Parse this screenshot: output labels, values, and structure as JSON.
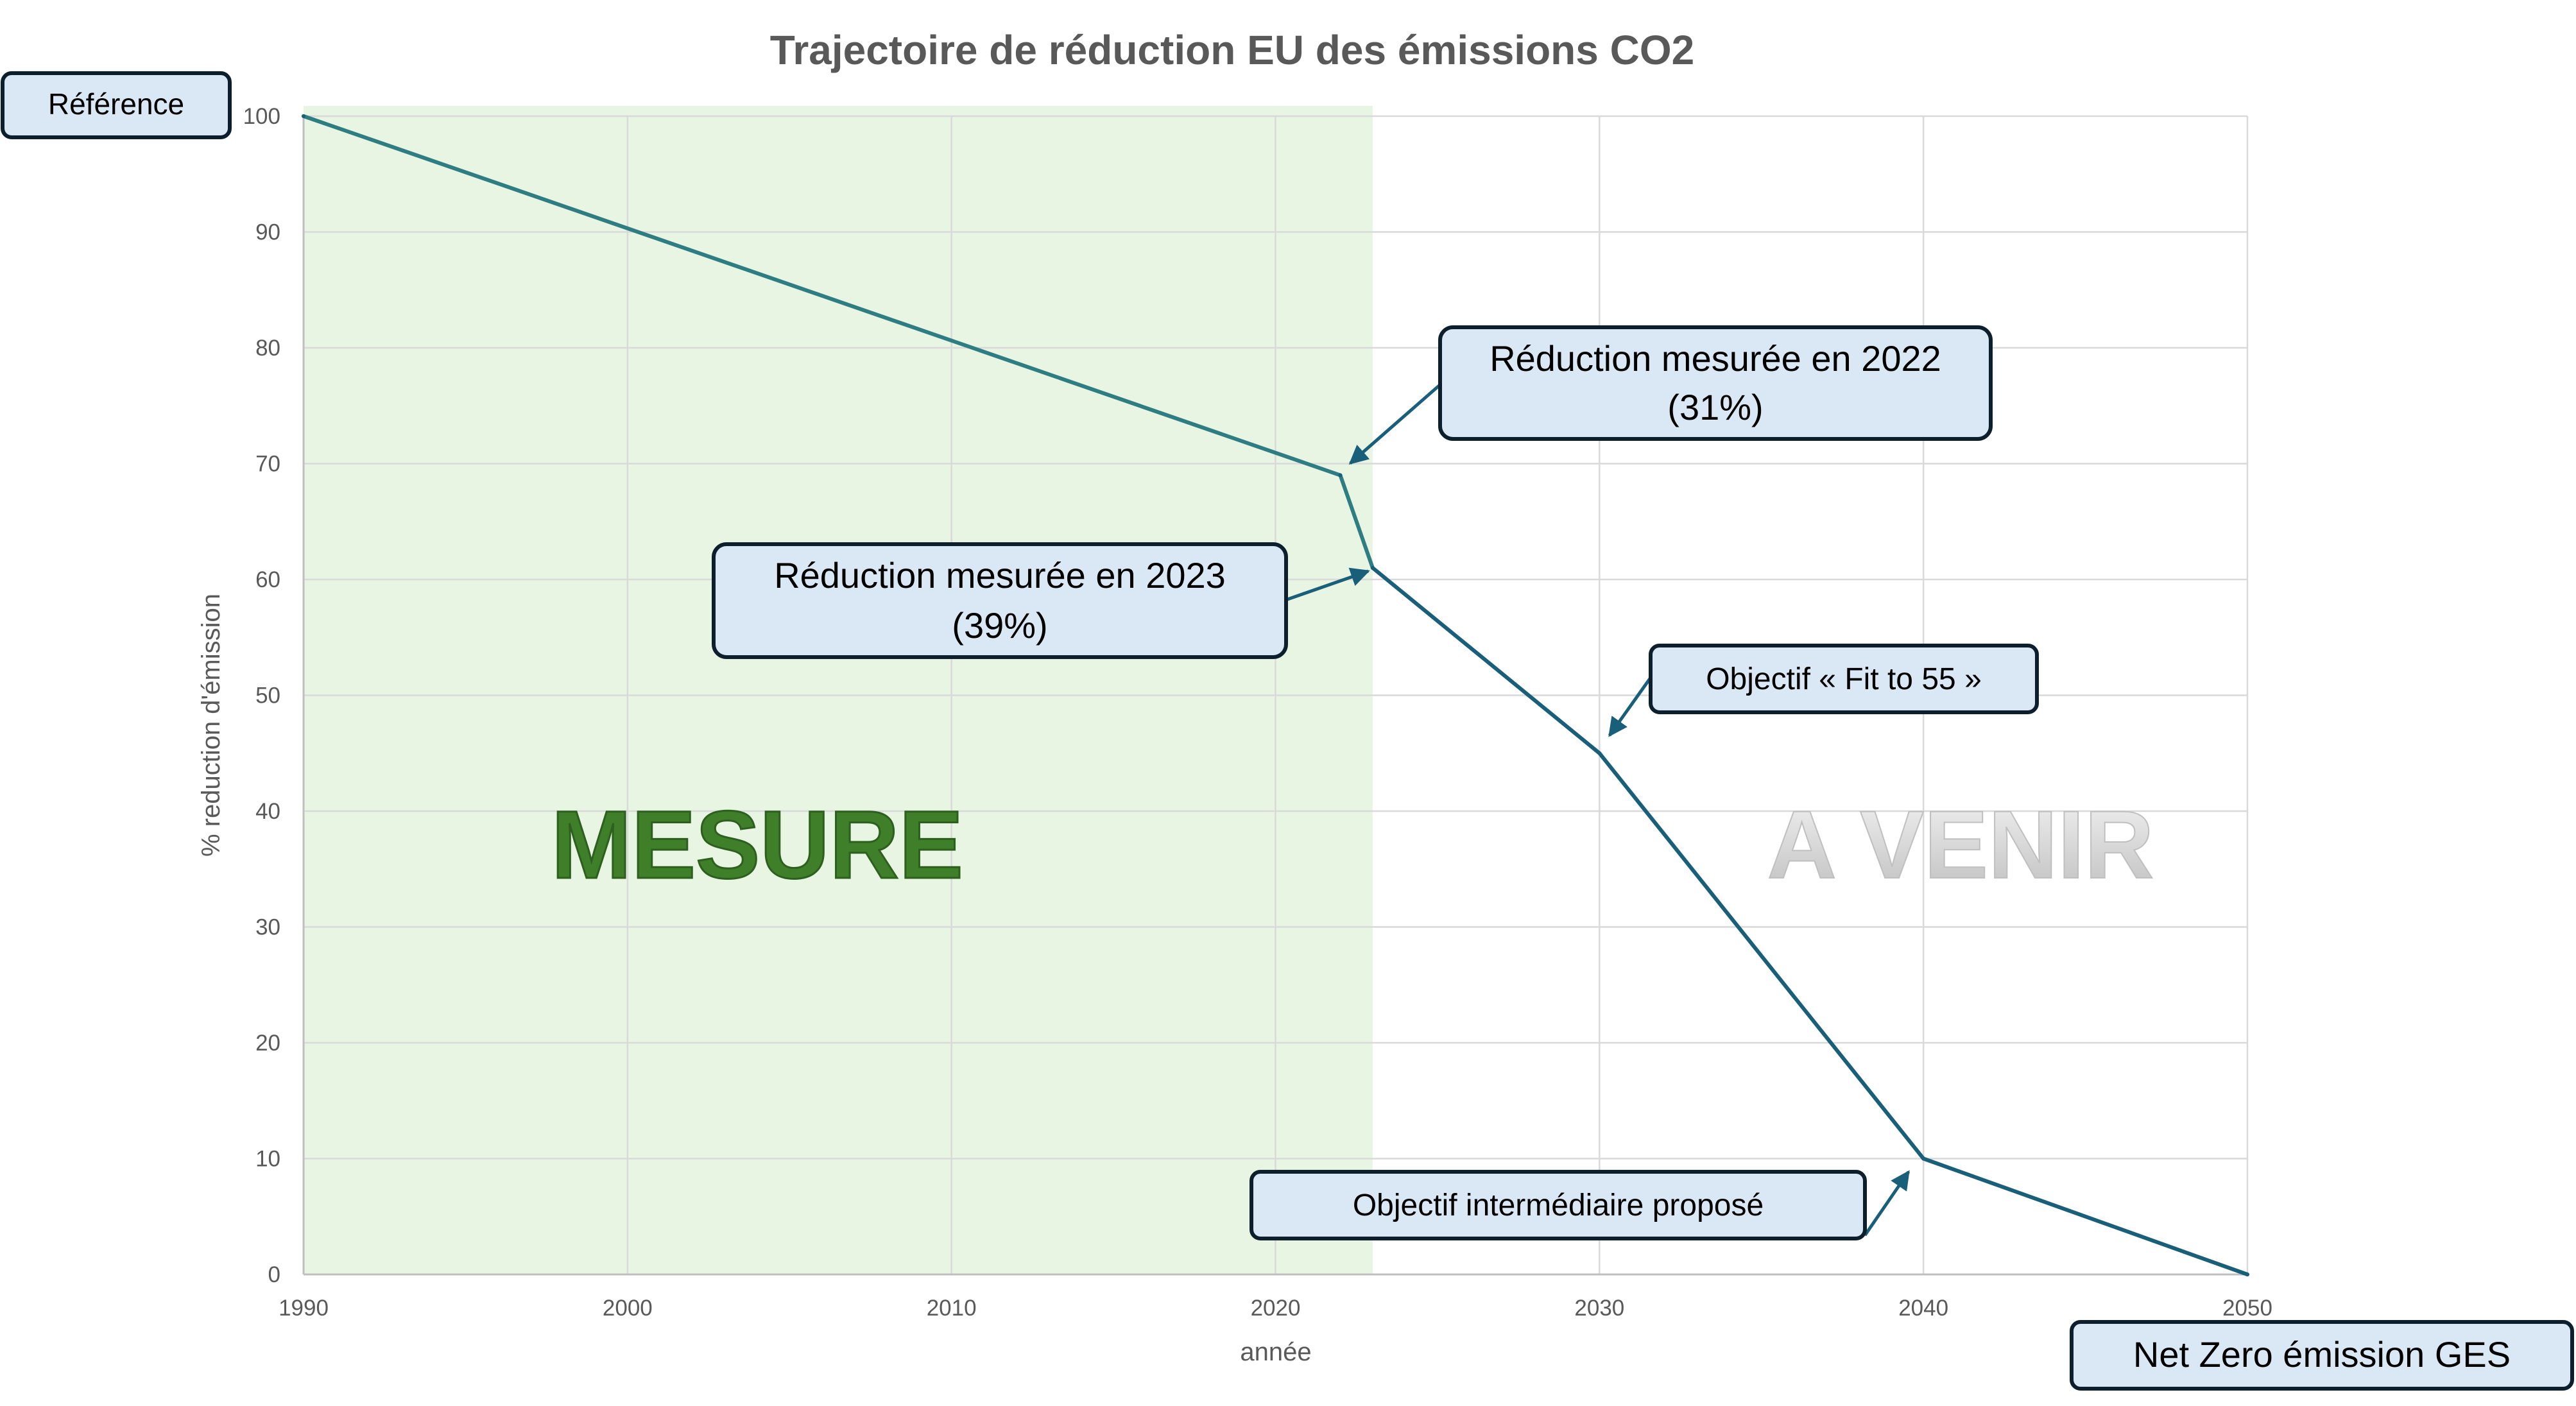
{
  "chart_data": {
    "type": "line",
    "title": "Trajectoire de réduction EU des émissions CO2",
    "xlabel": "année",
    "ylabel": "% reduction d'émission",
    "xlim": [
      1990,
      2050
    ],
    "ylim": [
      0,
      100
    ],
    "xticks": [
      "1990",
      "2000",
      "2010",
      "2020",
      "2030",
      "2040",
      "2050"
    ],
    "yticks": [
      "0",
      "10",
      "20",
      "30",
      "40",
      "50",
      "60",
      "70",
      "80",
      "90",
      "100"
    ],
    "grid": true,
    "series": [
      {
        "x": [
          1990,
          2022,
          2023,
          2030,
          2040,
          2050
        ],
        "values": [
          100,
          69,
          61,
          45,
          10,
          0
        ]
      }
    ],
    "measured_region": {
      "x_start": 1990,
      "x_end": 2023,
      "label": "MESURE"
    },
    "future_label": "A VENIR",
    "annotations": {
      "reference": "Référence",
      "reduction_2022": [
        "Réduction mesurée en 2022",
        "(31%)"
      ],
      "reduction_2023": [
        "Réduction mesurée en 2023",
        "(39%)"
      ],
      "fit_to_55": "Objectif « Fit to 55 »",
      "intermediate": "Objectif intermédiaire proposé",
      "net_zero": "Net Zero émission GES"
    }
  },
  "colors": {
    "line": "#1a5f7a",
    "line_measured": "#2e7d82",
    "measured_bg": "#e8f5e3",
    "grid": "#d9d9d9",
    "callout_fill": "#dae8f6",
    "callout_border": "#0d1f2d",
    "mesure_text": "#3f7f2a",
    "avenir_text": "#d9d9d9"
  }
}
